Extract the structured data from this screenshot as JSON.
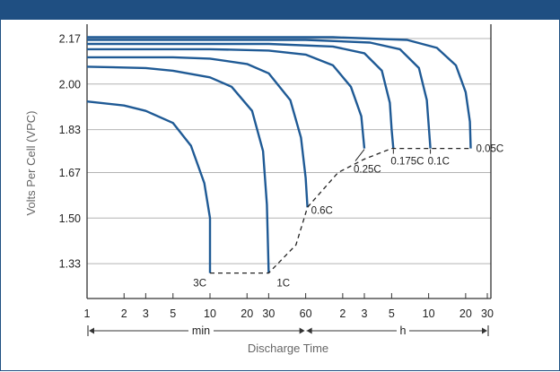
{
  "chart_data": {
    "type": "line",
    "title": "",
    "xlabel": "Discharge Time",
    "ylabel": "Volts Per Cell (VPC)",
    "ylim": [
      1.2,
      2.2
    ],
    "y_ticks": [
      "1.33",
      "1.50",
      "1.67",
      "1.83",
      "2.00",
      "2.17"
    ],
    "x_scale": "log",
    "x_units": "minutes",
    "x_ticks": [
      {
        "label": "1",
        "minutes": 1
      },
      {
        "label": "2",
        "minutes": 2
      },
      {
        "label": "3",
        "minutes": 3
      },
      {
        "label": "5",
        "minutes": 5
      },
      {
        "label": "10",
        "minutes": 10
      },
      {
        "label": "20",
        "minutes": 20
      },
      {
        "label": "30",
        "minutes": 30
      },
      {
        "label": "60",
        "minutes": 60
      },
      {
        "label": "2",
        "minutes": 120
      },
      {
        "label": "3",
        "minutes": 180
      },
      {
        "label": "5",
        "minutes": 300
      },
      {
        "label": "10",
        "minutes": 600
      },
      {
        "label": "20",
        "minutes": 1200
      },
      {
        "label": "30",
        "minutes": 1800
      }
    ],
    "units": {
      "min": "min",
      "h": "h"
    },
    "grid": true,
    "series": [
      {
        "name": "3C",
        "points": [
          [
            1,
            1.935
          ],
          [
            2,
            1.92
          ],
          [
            3,
            1.9
          ],
          [
            5,
            1.855
          ],
          [
            7,
            1.77
          ],
          [
            9,
            1.63
          ],
          [
            10,
            1.5
          ],
          [
            10,
            1.295
          ]
        ]
      },
      {
        "name": "1C",
        "points": [
          [
            1,
            2.065
          ],
          [
            3,
            2.06
          ],
          [
            5,
            2.05
          ],
          [
            10,
            2.025
          ],
          [
            15,
            1.99
          ],
          [
            22,
            1.9
          ],
          [
            27,
            1.75
          ],
          [
            29,
            1.55
          ],
          [
            30,
            1.295
          ]
        ]
      },
      {
        "name": "0.6C",
        "points": [
          [
            1,
            2.1
          ],
          [
            5,
            2.1
          ],
          [
            10,
            2.095
          ],
          [
            20,
            2.075
          ],
          [
            30,
            2.04
          ],
          [
            45,
            1.94
          ],
          [
            55,
            1.8
          ],
          [
            60,
            1.65
          ],
          [
            62,
            1.54
          ]
        ]
      },
      {
        "name": "0.25C",
        "points": [
          [
            1,
            2.13
          ],
          [
            10,
            2.13
          ],
          [
            30,
            2.125
          ],
          [
            60,
            2.11
          ],
          [
            100,
            2.07
          ],
          [
            140,
            1.99
          ],
          [
            170,
            1.88
          ],
          [
            180,
            1.76
          ]
        ]
      },
      {
        "name": "0.175C",
        "points": [
          [
            1,
            2.15
          ],
          [
            30,
            2.15
          ],
          [
            100,
            2.14
          ],
          [
            180,
            2.115
          ],
          [
            250,
            2.05
          ],
          [
            290,
            1.93
          ],
          [
            300,
            1.83
          ],
          [
            310,
            1.76
          ]
        ]
      },
      {
        "name": "0.1C",
        "points": [
          [
            1,
            2.165
          ],
          [
            60,
            2.165
          ],
          [
            200,
            2.155
          ],
          [
            350,
            2.13
          ],
          [
            500,
            2.06
          ],
          [
            580,
            1.94
          ],
          [
            620,
            1.76
          ]
        ]
      },
      {
        "name": "0.05C",
        "points": [
          [
            1,
            2.175
          ],
          [
            100,
            2.175
          ],
          [
            400,
            2.165
          ],
          [
            700,
            2.135
          ],
          [
            1000,
            2.07
          ],
          [
            1200,
            1.97
          ],
          [
            1300,
            1.86
          ],
          [
            1320,
            1.76
          ]
        ]
      }
    ],
    "end_voltage_line": [
      [
        10,
        1.295
      ],
      [
        30,
        1.295
      ],
      [
        50,
        1.4
      ],
      [
        62,
        1.54
      ],
      [
        110,
        1.67
      ],
      [
        180,
        1.72
      ],
      [
        300,
        1.76
      ],
      [
        620,
        1.76
      ],
      [
        1320,
        1.76
      ]
    ]
  }
}
